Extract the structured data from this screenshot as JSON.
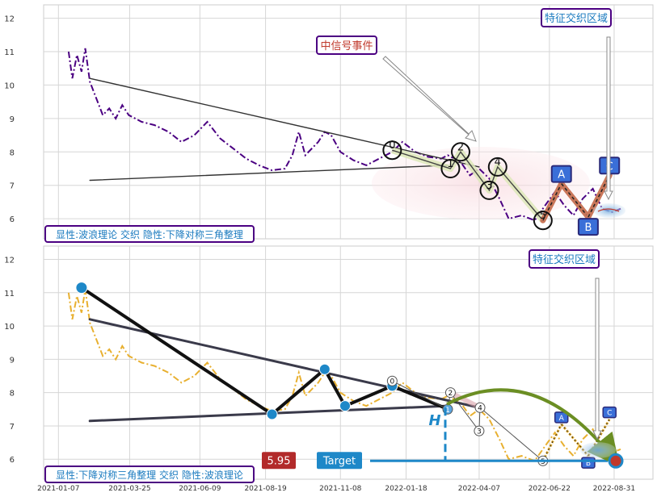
{
  "chart_data": [
    {
      "type": "line",
      "title": "",
      "xlabel": "",
      "ylabel": "",
      "ylim": [
        5.4,
        12.4
      ],
      "yticks": [
        6,
        7,
        8,
        9,
        10,
        11,
        12
      ],
      "grid": true,
      "series": [
        {
          "color": "#4b0082",
          "style": "dash-dot",
          "points": [
            [
              "2021-01-18",
              11.0
            ],
            [
              "2021-01-22",
              10.2
            ],
            [
              "2021-01-27",
              10.9
            ],
            [
              "2021-02-01",
              10.4
            ],
            [
              "2021-02-05",
              11.1
            ],
            [
              "2021-02-10",
              10.1
            ],
            [
              "2021-02-17",
              9.6
            ],
            [
              "2021-02-24",
              9.1
            ],
            [
              "2021-03-03",
              9.3
            ],
            [
              "2021-03-10",
              9.0
            ],
            [
              "2021-03-17",
              9.4
            ],
            [
              "2021-03-24",
              9.1
            ],
            [
              "2021-04-07",
              8.9
            ],
            [
              "2021-04-21",
              8.8
            ],
            [
              "2021-05-06",
              8.6
            ],
            [
              "2021-05-20",
              8.3
            ],
            [
              "2021-06-03",
              8.5
            ],
            [
              "2021-06-17",
              8.9
            ],
            [
              "2021-07-01",
              8.4
            ],
            [
              "2021-07-15",
              8.1
            ],
            [
              "2021-07-29",
              7.8
            ],
            [
              "2021-08-12",
              7.6
            ],
            [
              "2021-08-26",
              7.45
            ],
            [
              "2021-09-09",
              7.5
            ],
            [
              "2021-09-17",
              7.9
            ],
            [
              "2021-09-24",
              8.6
            ],
            [
              "2021-10-01",
              7.9
            ],
            [
              "2021-10-15",
              8.3
            ],
            [
              "2021-10-22",
              8.6
            ],
            [
              "2021-10-29",
              8.5
            ],
            [
              "2021-11-08",
              8.0
            ],
            [
              "2021-11-22",
              7.75
            ],
            [
              "2021-12-06",
              7.6
            ],
            [
              "2021-12-20",
              7.8
            ],
            [
              "2022-01-03",
              8.0
            ],
            [
              "2022-01-14",
              8.3
            ],
            [
              "2022-01-28",
              8.0
            ],
            [
              "2022-02-11",
              7.85
            ],
            [
              "2022-02-25",
              7.8
            ],
            [
              "2022-03-04",
              7.9
            ],
            [
              "2022-03-18",
              7.7
            ],
            [
              "2022-03-28",
              7.3
            ],
            [
              "2022-04-07",
              7.5
            ],
            [
              "2022-04-18",
              7.2
            ],
            [
              "2022-04-29",
              6.6
            ],
            [
              "2022-05-09",
              6.0
            ],
            [
              "2022-05-23",
              6.1
            ],
            [
              "2022-06-06",
              5.95
            ],
            [
              "2022-06-20",
              6.5
            ],
            [
              "2022-06-28",
              6.8
            ],
            [
              "2022-07-08",
              6.4
            ],
            [
              "2022-07-18",
              6.1
            ],
            [
              "2022-07-28",
              6.6
            ],
            [
              "2022-08-08",
              6.9
            ],
            [
              "2022-08-18",
              6.3
            ],
            [
              "2022-08-29",
              6.2
            ],
            [
              "2022-09-07",
              6.3
            ]
          ]
        }
      ],
      "wave_labels": [
        "0",
        "1",
        "2",
        "3",
        "4",
        "5",
        "A",
        "B",
        "C"
      ],
      "wave_points": [
        [
          "2022-01-03",
          8.05
        ],
        [
          "2022-03-07",
          7.5
        ],
        [
          "2022-03-18",
          8.0
        ],
        [
          "2022-04-18",
          6.85
        ],
        [
          "2022-04-27",
          7.55
        ],
        [
          "2022-06-15",
          5.95
        ],
        [
          "2022-07-05",
          7.05
        ],
        [
          "2022-08-03",
          6.05
        ],
        [
          "2022-08-26",
          7.3
        ]
      ],
      "trendlines": [
        [
          [
            "2021-02-10",
            10.2
          ],
          [
            "2022-04-07",
            7.55
          ]
        ],
        [
          [
            "2021-02-10",
            7.15
          ],
          [
            "2022-03-04",
            7.6
          ]
        ]
      ],
      "annotations": [
        {
          "text": "中信号事件",
          "color": "#c0392b"
        },
        {
          "text": "特征交织区域",
          "color": "#1a7abf"
        }
      ],
      "caption": "显性:波浪理论 交织 隐性:下降对称三角整理"
    },
    {
      "type": "line",
      "title": "",
      "xlabel": "",
      "ylabel": "",
      "ylim": [
        5.4,
        12.4
      ],
      "yticks": [
        6,
        7,
        8,
        9,
        10,
        11,
        12
      ],
      "x_tick_labels": [
        "2021-01-07",
        "2021-03-25",
        "2021-06-09",
        "2021-08-19",
        "2021-11-08",
        "2022-01-18",
        "2022-04-07",
        "2022-06-22",
        "2022-08-31"
      ],
      "grid": true,
      "series": [
        {
          "color": "#e8b030",
          "style": "dash-dot",
          "points": [
            [
              "2021-01-18",
              11.0
            ],
            [
              "2021-01-22",
              10.2
            ],
            [
              "2021-01-27",
              10.9
            ],
            [
              "2021-02-01",
              10.4
            ],
            [
              "2021-02-05",
              11.1
            ],
            [
              "2021-02-10",
              10.1
            ],
            [
              "2021-02-17",
              9.6
            ],
            [
              "2021-02-24",
              9.1
            ],
            [
              "2021-03-03",
              9.3
            ],
            [
              "2021-03-10",
              9.0
            ],
            [
              "2021-03-17",
              9.4
            ],
            [
              "2021-03-24",
              9.1
            ],
            [
              "2021-04-07",
              8.9
            ],
            [
              "2021-04-21",
              8.8
            ],
            [
              "2021-05-06",
              8.6
            ],
            [
              "2021-05-20",
              8.3
            ],
            [
              "2021-06-03",
              8.5
            ],
            [
              "2021-06-17",
              8.9
            ],
            [
              "2021-07-01",
              8.4
            ],
            [
              "2021-07-15",
              8.1
            ],
            [
              "2021-07-29",
              7.8
            ],
            [
              "2021-08-12",
              7.6
            ],
            [
              "2021-08-26",
              7.45
            ],
            [
              "2021-09-09",
              7.5
            ],
            [
              "2021-09-17",
              7.9
            ],
            [
              "2021-09-24",
              8.6
            ],
            [
              "2021-10-01",
              7.9
            ],
            [
              "2021-10-15",
              8.3
            ],
            [
              "2021-10-22",
              8.6
            ],
            [
              "2021-10-29",
              8.5
            ],
            [
              "2021-11-08",
              8.0
            ],
            [
              "2021-11-22",
              7.75
            ],
            [
              "2021-12-06",
              7.6
            ],
            [
              "2021-12-20",
              7.8
            ],
            [
              "2022-01-03",
              8.0
            ],
            [
              "2022-01-14",
              8.3
            ],
            [
              "2022-01-28",
              8.0
            ],
            [
              "2022-02-11",
              7.85
            ],
            [
              "2022-02-25",
              7.8
            ],
            [
              "2022-03-04",
              7.9
            ],
            [
              "2022-03-18",
              7.7
            ],
            [
              "2022-03-28",
              7.3
            ],
            [
              "2022-04-07",
              7.5
            ],
            [
              "2022-04-18",
              7.2
            ],
            [
              "2022-04-29",
              6.6
            ],
            [
              "2022-05-09",
              6.0
            ],
            [
              "2022-05-23",
              6.1
            ],
            [
              "2022-06-06",
              5.95
            ],
            [
              "2022-06-20",
              6.5
            ],
            [
              "2022-06-28",
              6.8
            ],
            [
              "2022-07-08",
              6.4
            ],
            [
              "2022-07-18",
              6.1
            ],
            [
              "2022-07-28",
              6.6
            ],
            [
              "2022-08-08",
              6.9
            ],
            [
              "2022-08-18",
              6.3
            ],
            [
              "2022-08-29",
              6.2
            ],
            [
              "2022-09-07",
              6.3
            ]
          ]
        }
      ],
      "triangle_points": [
        [
          "2021-02-01",
          11.15
        ],
        [
          "2021-08-26",
          7.35
        ],
        [
          "2021-10-22",
          8.7
        ],
        [
          "2021-11-13",
          7.6
        ],
        [
          "2022-01-03",
          8.2
        ],
        [
          "2022-02-28",
          7.55
        ],
        [
          "2022-03-07",
          7.6
        ]
      ],
      "trendlines": [
        [
          [
            "2021-02-10",
            10.2
          ],
          [
            "2022-04-07",
            7.55
          ]
        ],
        [
          [
            "2021-02-10",
            7.15
          ],
          [
            "2022-03-04",
            7.6
          ]
        ]
      ],
      "wave_labels": [
        "0",
        "1",
        "2",
        "3",
        "4",
        "5",
        "A",
        "B",
        "C"
      ],
      "wave_points": [
        [
          "2022-01-03",
          8.35
        ],
        [
          "2022-03-04",
          7.5
        ],
        [
          "2022-03-07",
          8.0
        ],
        [
          "2022-04-07",
          6.85
        ],
        [
          "2022-04-08",
          7.55
        ],
        [
          "2022-06-15",
          5.95
        ],
        [
          "2022-07-05",
          7.05
        ],
        [
          "2022-08-03",
          6.1
        ],
        [
          "2022-08-26",
          7.2
        ]
      ],
      "target_value": "5.95",
      "target_label": "Target",
      "h_label": "H",
      "annotations": [
        {
          "text": "特征交织区域",
          "color": "#1a7abf"
        }
      ],
      "caption": "显性:下降对称三角整理 交织 隐性:波浪理论"
    }
  ]
}
